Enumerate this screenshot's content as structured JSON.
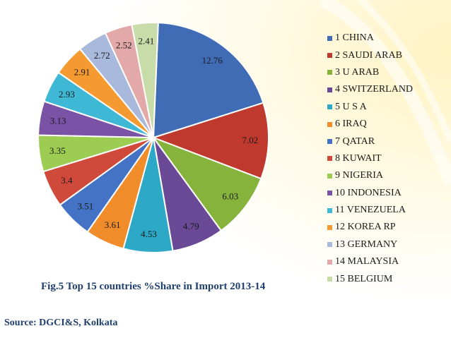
{
  "chart_data": {
    "type": "pie",
    "categories": [
      "1 CHINA",
      "2 SAUDI ARAB",
      "3 U ARAB",
      "4 SWITZERLAND",
      "5 U S A",
      "6 IRAQ",
      "7 QATAR",
      "8 KUWAIT",
      "9 NIGERIA",
      "10 INDONESIA",
      "11 VENEZUELA",
      "12 KOREA RP",
      "13 GERMANY",
      "14 MALAYSIA",
      "15 BELGIUM"
    ],
    "values": [
      12.76,
      7.02,
      6.03,
      4.79,
      4.53,
      3.61,
      3.51,
      3.4,
      3.35,
      3.13,
      2.93,
      2.91,
      2.72,
      2.52,
      2.41
    ],
    "data_labels": [
      "12.76",
      "7.02",
      "6.03",
      "4.79",
      "4.53",
      "3.61",
      "3.51",
      "3.4",
      "3.35",
      "3.13",
      "2.93",
      "2.91",
      "2.72",
      "2.52",
      "2.41"
    ],
    "colors": [
      "#3f6cb5",
      "#c0392e",
      "#86b33c",
      "#6a4a96",
      "#2ea8c7",
      "#f08c2a",
      "#4472c4",
      "#d04a3c",
      "#9ccc52",
      "#7a52a6",
      "#3fb8d6",
      "#f59a30",
      "#a9b9dc",
      "#e3a8a8",
      "#c8dcaa"
    ],
    "legend_position": "right"
  },
  "caption": "Fig.5 Top 15 countries  %Share in Import 2013-14",
  "source": "Source:  DGCI&S, Kolkata"
}
